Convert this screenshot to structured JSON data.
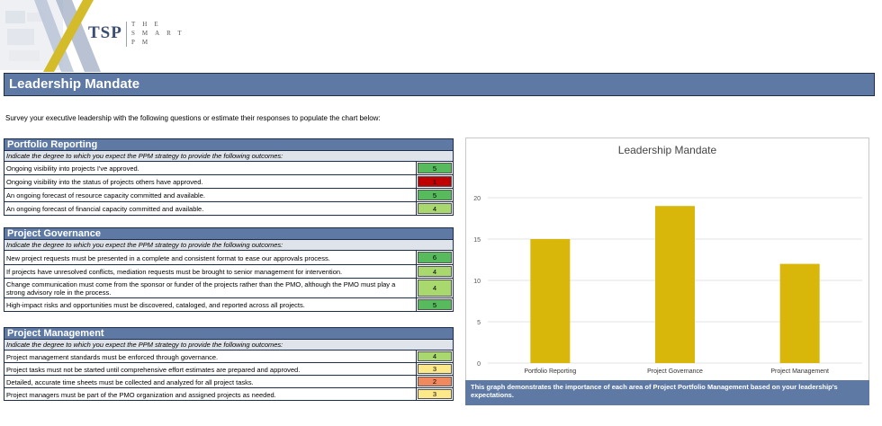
{
  "logo": {
    "mark": "TSP",
    "tagline": "THE SMART PM"
  },
  "page": {
    "title": "Leadership Mandate",
    "intro": "Survey your executive leadership with the following questions or estimate their responses to populate the chart below:"
  },
  "colors": {
    "header_blue": "#5e7aa4",
    "score_5": "#57bb5e",
    "score_4": "#a9d86e",
    "score_3": "#fde98a",
    "score_2": "#f08a5e",
    "score_1": "#c00000",
    "bar": "#d8b70a"
  },
  "sections": [
    {
      "title": "Portfolio Reporting",
      "subtitle": "Indicate the degree to which you expect the PPM strategy to provide the following outcomes:",
      "rows": [
        {
          "text": "Ongoing visibility into projects I've approved.",
          "score": "5"
        },
        {
          "text": "Ongoing visibility into the status of projects others have approved.",
          "score": "1"
        },
        {
          "text": "An ongoing forecast of resource capacity committed and available.",
          "score": "5"
        },
        {
          "text": "An ongoing forecast of financial capacity committed and available.",
          "score": "4"
        }
      ]
    },
    {
      "title": "Project Governance",
      "subtitle": "Indicate the degree to which you expect the PPM strategy to provide the following outcomes:",
      "rows": [
        {
          "text": "New project requests must be presented in a complete and consistent format to ease our approvals process.",
          "score": "6"
        },
        {
          "text": "If projects have unresolved conflicts, mediation requests must be brought to senior management for intervention.",
          "score": "4"
        },
        {
          "text": "Change communication must come from the sponsor or funder of the projects rather than the PMO, although the PMO must play a strong advisory role in the process.",
          "score": "4"
        },
        {
          "text": "High-impact risks and opportunities must be discovered, cataloged, and reported across all projects.",
          "score": "5"
        }
      ]
    },
    {
      "title": "Project Management",
      "subtitle": "Indicate the degree to which you expect the PPM strategy to provide the following outcomes:",
      "rows": [
        {
          "text": "Project management standards must be enforced through governance.",
          "score": "4"
        },
        {
          "text": "Project tasks must not be started until comprehensive effort estimates are prepared and approved.",
          "score": "3"
        },
        {
          "text": "Detailed, accurate time sheets must be collected and analyzed for all project tasks.",
          "score": "2"
        },
        {
          "text": "Project managers must be part of the PMO organization and assigned projects as needed.",
          "score": "3"
        }
      ]
    }
  ],
  "chart_data": {
    "type": "bar",
    "title": "Leadership Mandate",
    "categories": [
      "Portfolio Reporting",
      "Project Governance",
      "Project Management"
    ],
    "values": [
      15,
      19,
      12
    ],
    "ylim": [
      0,
      20
    ],
    "yticks": [
      0,
      5,
      10,
      15,
      20
    ],
    "grid": true,
    "legend": "none"
  },
  "chart_caption": "This graph demonstrates the importance of each area of Project Portfolio Management based on your leadership's expectations."
}
